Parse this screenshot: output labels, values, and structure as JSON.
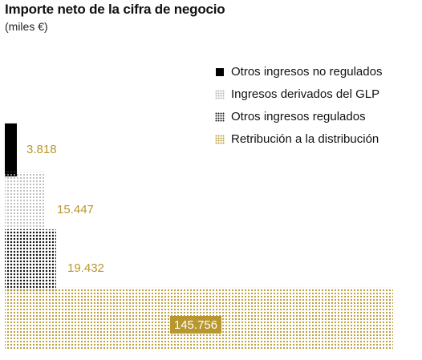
{
  "title": "Importe neto de la cifra de negocio",
  "subtitle": "(miles €)",
  "chart_data": {
    "type": "area",
    "title": "Importe neto de la cifra de negocio",
    "subtitle": "(miles €)",
    "series": [
      {
        "name": "Otros ingresos no regulados",
        "value": 3818,
        "label": "3.818",
        "color": "#000000",
        "pattern": "solid"
      },
      {
        "name": "Ingresos derivados del GLP",
        "value": 15447,
        "label": "15.447",
        "color": "#b0b0b0",
        "pattern": "dots"
      },
      {
        "name": "Otros ingresos regulados",
        "value": 19432,
        "label": "19.432",
        "color": "#111111",
        "pattern": "dots"
      },
      {
        "name": "Retribución a la distribución",
        "value": 145756,
        "label": "145.756",
        "color": "#b8972e",
        "pattern": "dots"
      }
    ],
    "legend_position": "top-right",
    "value_label_color": "#b8972e"
  }
}
